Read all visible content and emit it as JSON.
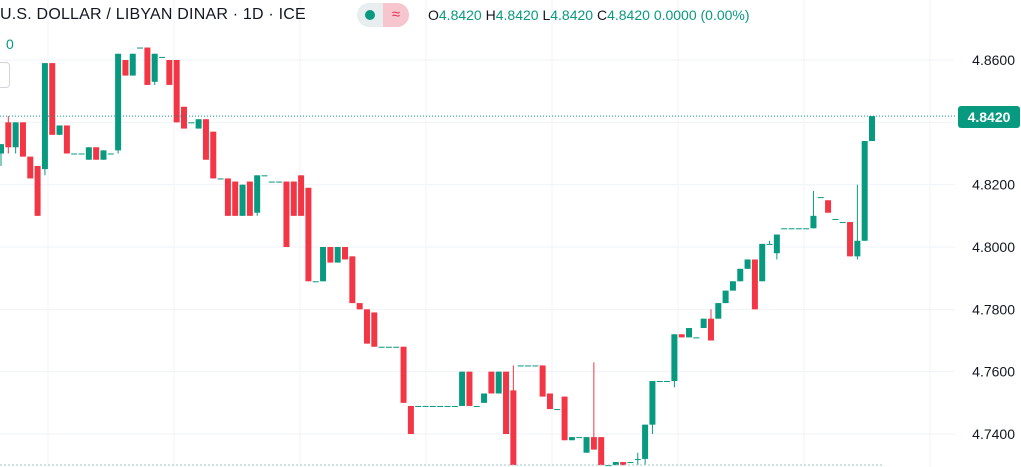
{
  "header": {
    "symbol_title": "U.S. DOLLAR / LIBYAN DINAR · 1D · ICE",
    "wave_icon": "≈",
    "ohlc": {
      "o_label": "O",
      "o_value": "4.8420",
      "h_label": "H",
      "h_value": "4.8420",
      "l_label": "L",
      "l_value": "4.8420",
      "c_label": "C",
      "c_value": "4.8420",
      "change": "0.0000 (0.00%)"
    },
    "volume_value": "0"
  },
  "colors": {
    "up": "#089981",
    "down": "#f23645",
    "grid": "#f0f3fa",
    "axis_text": "#131722",
    "price_line": "#089981"
  },
  "last_price_label": "4.8420",
  "chart_data": {
    "type": "candlestick",
    "y_axis": {
      "ticks": [
        "4.8600",
        "4.8400",
        "4.8200",
        "4.8000",
        "4.7800",
        "4.7600",
        "4.7400"
      ],
      "tick_values": [
        4.86,
        4.84,
        4.82,
        4.8,
        4.78,
        4.76,
        4.74
      ],
      "range": [
        4.729,
        4.875
      ]
    },
    "last_price": 4.842,
    "grid": true,
    "candles": [
      [
        4.83,
        4.833,
        4.826,
        4.833
      ],
      [
        4.84,
        4.842,
        4.83,
        4.832
      ],
      [
        4.832,
        4.84,
        4.83,
        4.84
      ],
      [
        4.84,
        4.84,
        4.829,
        4.829
      ],
      [
        4.829,
        4.829,
        4.822,
        4.822
      ],
      [
        4.826,
        4.826,
        4.81,
        4.81
      ],
      [
        4.825,
        4.859,
        4.823,
        4.859
      ],
      [
        4.859,
        4.859,
        4.836,
        4.836
      ],
      [
        4.836,
        4.839,
        4.836,
        4.839
      ],
      [
        4.839,
        4.839,
        4.83,
        4.83
      ],
      [
        4.83,
        4.83,
        4.83,
        4.83
      ],
      [
        4.83,
        4.83,
        4.83,
        4.83
      ],
      [
        4.828,
        4.832,
        4.828,
        4.832
      ],
      [
        4.832,
        4.832,
        4.828,
        4.828
      ],
      [
        4.828,
        4.831,
        4.828,
        4.831
      ],
      [
        4.83,
        4.83,
        4.83,
        4.83
      ],
      [
        4.831,
        4.862,
        4.83,
        4.862
      ],
      [
        4.86,
        4.86,
        4.855,
        4.855
      ],
      [
        4.855,
        4.862,
        4.855,
        4.862
      ],
      [
        4.864,
        4.864,
        4.864,
        4.864
      ],
      [
        4.864,
        4.864,
        4.852,
        4.852
      ],
      [
        4.853,
        4.862,
        4.852,
        4.862
      ],
      [
        4.861,
        4.861,
        4.861,
        4.861
      ],
      [
        4.86,
        4.86,
        4.852,
        4.852
      ],
      [
        4.86,
        4.86,
        4.84,
        4.84
      ],
      [
        4.845,
        4.845,
        4.838,
        4.838
      ],
      [
        4.84,
        4.84,
        4.84,
        4.84
      ],
      [
        4.838,
        4.841,
        4.838,
        4.841
      ],
      [
        4.841,
        4.841,
        4.828,
        4.828
      ],
      [
        4.837,
        4.837,
        4.822,
        4.822
      ],
      [
        4.822,
        4.822,
        4.822,
        4.822
      ],
      [
        4.822,
        4.822,
        4.81,
        4.81
      ],
      [
        4.821,
        4.821,
        4.81,
        4.81
      ],
      [
        4.81,
        4.82,
        4.81,
        4.82
      ],
      [
        4.821,
        4.821,
        4.81,
        4.81
      ],
      [
        4.811,
        4.823,
        4.81,
        4.823
      ],
      [
        4.823,
        4.823,
        4.823,
        4.823
      ],
      [
        4.821,
        4.821,
        4.821,
        4.821
      ],
      [
        4.821,
        4.821,
        4.821,
        4.821
      ],
      [
        4.821,
        4.821,
        4.8,
        4.8
      ],
      [
        4.821,
        4.821,
        4.81,
        4.81
      ],
      [
        4.823,
        4.823,
        4.81,
        4.81
      ],
      [
        4.819,
        4.819,
        4.789,
        4.789
      ],
      [
        4.789,
        4.789,
        4.789,
        4.789
      ],
      [
        4.789,
        4.8,
        4.789,
        4.8
      ],
      [
        4.8,
        4.8,
        4.795,
        4.795
      ],
      [
        4.795,
        4.8,
        4.795,
        4.8
      ],
      [
        4.8,
        4.8,
        4.796,
        4.796
      ],
      [
        4.797,
        4.797,
        4.782,
        4.782
      ],
      [
        4.782,
        4.782,
        4.78,
        4.78
      ],
      [
        4.78,
        4.78,
        4.769,
        4.769
      ],
      [
        4.779,
        4.779,
        4.768,
        4.768
      ],
      [
        4.768,
        4.768,
        4.768,
        4.768
      ],
      [
        4.768,
        4.768,
        4.768,
        4.768
      ],
      [
        4.768,
        4.768,
        4.768,
        4.768
      ],
      [
        4.768,
        4.768,
        4.75,
        4.75
      ],
      [
        4.749,
        4.749,
        4.74,
        4.74
      ],
      [
        4.749,
        4.749,
        4.749,
        4.749
      ],
      [
        4.749,
        4.749,
        4.749,
        4.749
      ],
      [
        4.749,
        4.749,
        4.749,
        4.749
      ],
      [
        4.749,
        4.749,
        4.749,
        4.749
      ],
      [
        4.749,
        4.749,
        4.749,
        4.749
      ],
      [
        4.749,
        4.749,
        4.749,
        4.749
      ],
      [
        4.749,
        4.76,
        4.749,
        4.76
      ],
      [
        4.76,
        4.76,
        4.749,
        4.749
      ],
      [
        4.749,
        4.749,
        4.749,
        4.749
      ],
      [
        4.75,
        4.753,
        4.75,
        4.753
      ],
      [
        4.76,
        4.76,
        4.753,
        4.753
      ],
      [
        4.753,
        4.76,
        4.753,
        4.76
      ],
      [
        4.76,
        4.76,
        4.74,
        4.74
      ],
      [
        4.754,
        4.762,
        4.73,
        4.73
      ],
      [
        4.762,
        4.762,
        4.762,
        4.762
      ],
      [
        4.762,
        4.762,
        4.762,
        4.762
      ],
      [
        4.762,
        4.762,
        4.762,
        4.762
      ],
      [
        4.762,
        4.762,
        4.752,
        4.752
      ],
      [
        4.753,
        4.753,
        4.748,
        4.748
      ],
      [
        4.748,
        4.748,
        4.748,
        4.748
      ],
      [
        4.752,
        4.752,
        4.738,
        4.738
      ],
      [
        4.738,
        4.739,
        4.738,
        4.739
      ],
      [
        4.739,
        4.739,
        4.739,
        4.739
      ],
      [
        4.734,
        4.739,
        4.734,
        4.739
      ],
      [
        4.739,
        4.763,
        4.735,
        4.735
      ],
      [
        4.739,
        4.739,
        4.73,
        4.73
      ],
      [
        4.73,
        4.73,
        4.73,
        4.73
      ],
      [
        4.73,
        4.731,
        4.73,
        4.731
      ],
      [
        4.731,
        4.731,
        4.73,
        4.73
      ],
      [
        4.731,
        4.731,
        4.731,
        4.731
      ],
      [
        4.732,
        4.734,
        4.73,
        4.732
      ],
      [
        4.732,
        4.743,
        4.73,
        4.743
      ],
      [
        4.743,
        4.757,
        4.74,
        4.757
      ],
      [
        4.757,
        4.757,
        4.757,
        4.757
      ],
      [
        4.757,
        4.757,
        4.757,
        4.757
      ],
      [
        4.757,
        4.772,
        4.755,
        4.772
      ],
      [
        4.772,
        4.772,
        4.771,
        4.771
      ],
      [
        4.771,
        4.774,
        4.771,
        4.774
      ],
      [
        4.771,
        4.771,
        4.771,
        4.771
      ],
      [
        4.774,
        4.777,
        4.774,
        4.777
      ],
      [
        4.777,
        4.78,
        4.77,
        4.77
      ],
      [
        4.777,
        4.782,
        4.777,
        4.782
      ],
      [
        4.782,
        4.786,
        4.782,
        4.786
      ],
      [
        4.786,
        4.789,
        4.786,
        4.789
      ],
      [
        4.789,
        4.793,
        4.789,
        4.793
      ],
      [
        4.793,
        4.796,
        4.793,
        4.796
      ],
      [
        4.796,
        4.796,
        4.78,
        4.78
      ],
      [
        4.789,
        4.801,
        4.789,
        4.801
      ],
      [
        4.801,
        4.802,
        4.801,
        4.801
      ],
      [
        4.798,
        4.804,
        4.796,
        4.804
      ],
      [
        4.806,
        4.806,
        4.806,
        4.806
      ],
      [
        4.806,
        4.806,
        4.806,
        4.806
      ],
      [
        4.806,
        4.806,
        4.806,
        4.806
      ],
      [
        4.806,
        4.806,
        4.806,
        4.806
      ],
      [
        4.806,
        4.818,
        4.806,
        4.81
      ],
      [
        4.816,
        4.816,
        4.816,
        4.816
      ],
      [
        4.815,
        4.815,
        4.811,
        4.811
      ],
      [
        4.809,
        4.809,
        4.809,
        4.809
      ],
      [
        4.808,
        4.808,
        4.808,
        4.808
      ],
      [
        4.808,
        4.808,
        4.797,
        4.797
      ],
      [
        4.797,
        4.82,
        4.796,
        4.802
      ],
      [
        4.802,
        4.834,
        4.802,
        4.834
      ],
      [
        4.834,
        4.842,
        4.834,
        4.842
      ]
    ]
  }
}
